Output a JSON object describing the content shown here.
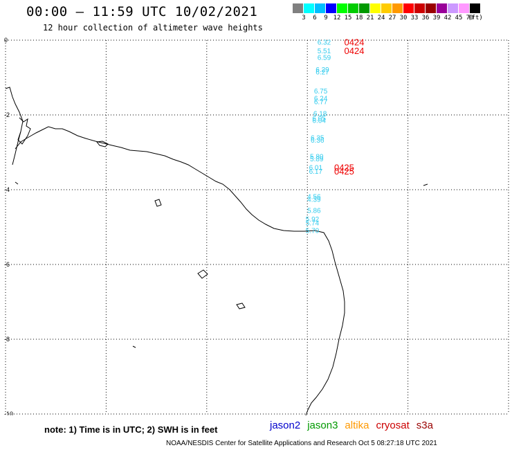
{
  "header": {
    "title": "00:00 – 11:59 UTC 10/02/2021",
    "subtitle": "12 hour collection of altimeter wave heights"
  },
  "legend": {
    "colors": [
      "#808080",
      "#00ffff",
      "#00bfff",
      "#0000ff",
      "#00ff00",
      "#00cc00",
      "#009900",
      "#ffff00",
      "#ffcc00",
      "#ff9900",
      "#ff0000",
      "#cc0000",
      "#990000",
      "#990099",
      "#cc99ff",
      "#ff99ff",
      "#000000"
    ],
    "labels": [
      "3",
      "6",
      "9",
      "12",
      "15",
      "18",
      "21",
      "24",
      "27",
      "30",
      "33",
      "36",
      "39",
      "42",
      "45",
      "70",
      "(ft)"
    ]
  },
  "map": {
    "lon_range": [
      -45,
      -30
    ],
    "lat_range": [
      -10,
      0
    ],
    "lon_ticks": [
      "-45",
      "-42",
      "-39",
      "-36",
      "-33",
      "-30"
    ],
    "lat_ticks": [
      "0",
      "-2",
      "-4",
      "-6",
      "-8",
      "-10"
    ],
    "observations": [
      {
        "lat": -0.05,
        "lon": -35.5,
        "value": "6.32"
      },
      {
        "lat": -0.28,
        "lon": -35.5,
        "value": "5.51"
      },
      {
        "lat": -0.45,
        "lon": -35.5,
        "value": "6.59"
      },
      {
        "lat": -0.78,
        "lon": -35.55,
        "value": "6.29"
      },
      {
        "lat": -0.84,
        "lon": -35.55,
        "value": "6.27"
      },
      {
        "lat": -1.35,
        "lon": -35.6,
        "value": "6.75"
      },
      {
        "lat": -1.55,
        "lon": -35.6,
        "value": "6.24"
      },
      {
        "lat": -1.64,
        "lon": -35.6,
        "value": "6.77"
      },
      {
        "lat": -1.95,
        "lon": -35.62,
        "value": "6.18"
      },
      {
        "lat": -2.08,
        "lon": -35.65,
        "value": "6.05"
      },
      {
        "lat": -2.14,
        "lon": -35.65,
        "value": "6.04"
      },
      {
        "lat": -2.6,
        "lon": -35.7,
        "value": "6.35"
      },
      {
        "lat": -2.67,
        "lon": -35.7,
        "value": "6.36"
      },
      {
        "lat": -3.1,
        "lon": -35.72,
        "value": "5.80"
      },
      {
        "lat": -3.17,
        "lon": -35.72,
        "value": "5.89"
      },
      {
        "lat": -3.4,
        "lon": -35.75,
        "value": "6.01"
      },
      {
        "lat": -3.5,
        "lon": -35.75,
        "value": "6.17"
      },
      {
        "lat": -4.18,
        "lon": -35.8,
        "value": "4.56"
      },
      {
        "lat": -4.25,
        "lon": -35.8,
        "value": "4.39"
      },
      {
        "lat": -4.55,
        "lon": -35.8,
        "value": "5.86"
      },
      {
        "lat": -4.78,
        "lon": -35.85,
        "value": "5.92"
      },
      {
        "lat": -4.88,
        "lon": -35.85,
        "value": "5.74"
      },
      {
        "lat": -5.08,
        "lon": -35.85,
        "value": "5.70"
      }
    ],
    "passes": [
      {
        "lat": -0.05,
        "lon": -34.9,
        "label": "0424"
      },
      {
        "lat": -0.28,
        "lon": -34.9,
        "label": "0424"
      },
      {
        "lat": -3.4,
        "lon": -35.2,
        "label": "0425"
      },
      {
        "lat": -3.5,
        "lon": -35.2,
        "label": "0425"
      }
    ]
  },
  "footer": {
    "note": "note:  1) Time is in UTC;  2) SWH is in feet",
    "satellites": [
      {
        "name": "jason2",
        "color": "#0000cc"
      },
      {
        "name": "jason3",
        "color": "#009900"
      },
      {
        "name": "altika",
        "color": "#ff9900"
      },
      {
        "name": "cryosat",
        "color": "#cc0000"
      },
      {
        "name": "s3a",
        "color": "#990000"
      }
    ],
    "credit": "NOAA/NESDIS Center for Satellite Applications and Research   Oct  5 08:27:18 UTC 2021"
  }
}
